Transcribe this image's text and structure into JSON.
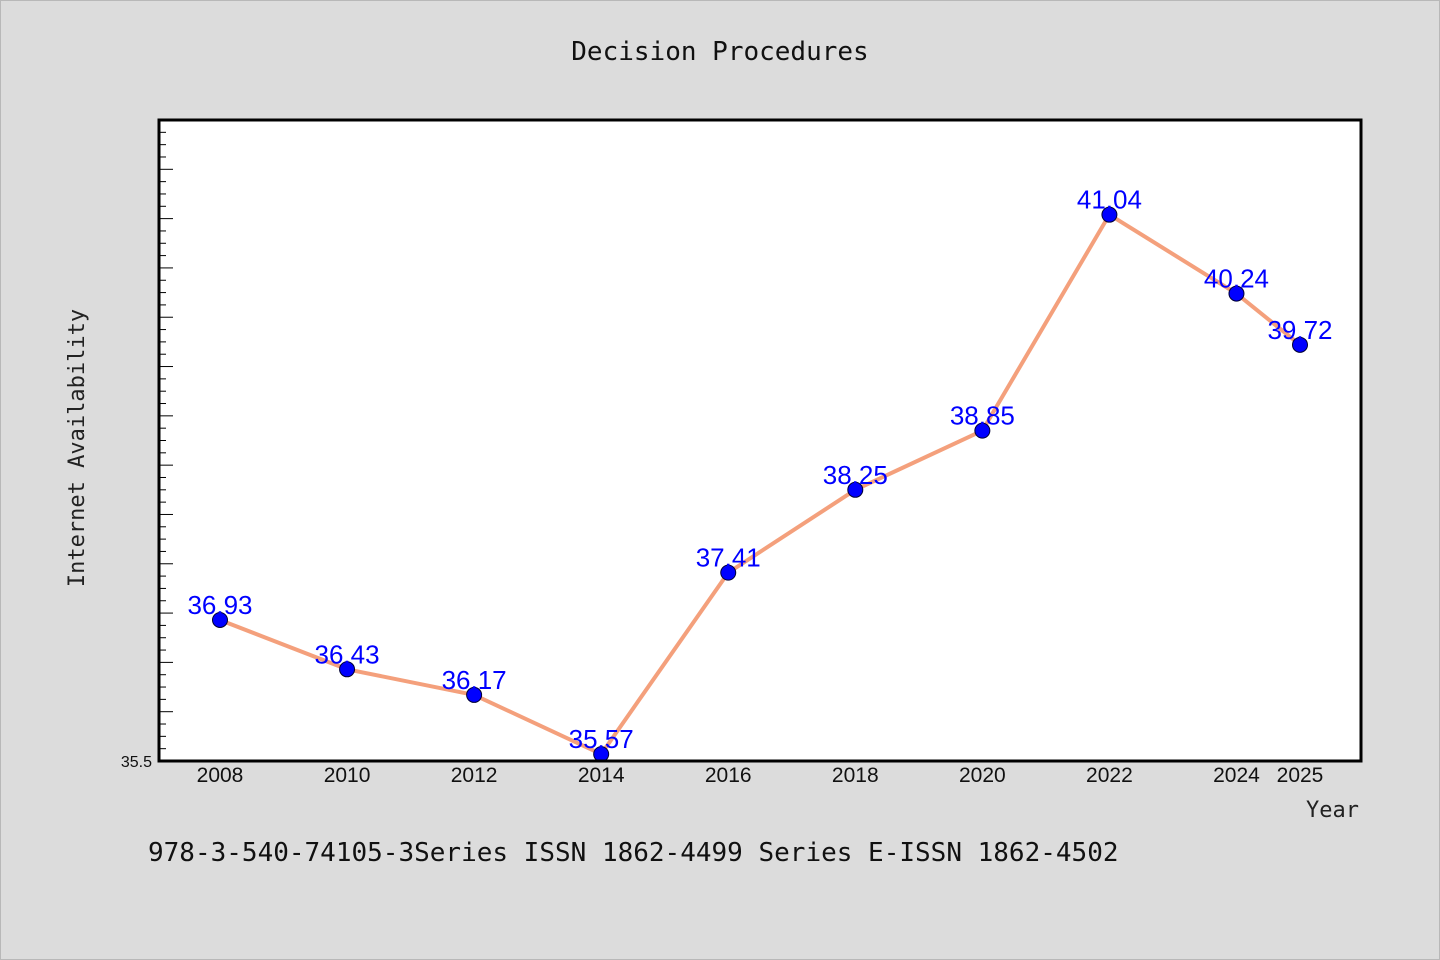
{
  "footer_text": "978-3-540-74105-3Series ISSN 1862-4499 Series E-ISSN 1862-4502",
  "colors": {
    "background": "#dcdcdc",
    "plot_background": "#ffffff",
    "line": "#f4a07c",
    "marker": "#0000ff",
    "data_label": "#0000ff"
  },
  "chart_data": {
    "type": "line",
    "title": "Decision Procedures",
    "xlabel": "Year",
    "ylabel": "Internet Availability",
    "categories": [
      "2008",
      "2010",
      "2012",
      "2014",
      "2016",
      "2018",
      "2020",
      "2022",
      "2024",
      "2025"
    ],
    "values": [
      36.93,
      36.43,
      36.17,
      35.57,
      37.41,
      38.25,
      38.85,
      41.04,
      40.24,
      39.72
    ],
    "data_labels": [
      "36.93",
      "36.43",
      "36.17",
      "35.57",
      "37.41",
      "38.25",
      "38.85",
      "41.04",
      "40.24",
      "39.72"
    ],
    "y_tick_labels": [
      "35.5"
    ],
    "ylim": [
      35.5,
      42.0
    ],
    "grid": false,
    "legend": "none"
  }
}
